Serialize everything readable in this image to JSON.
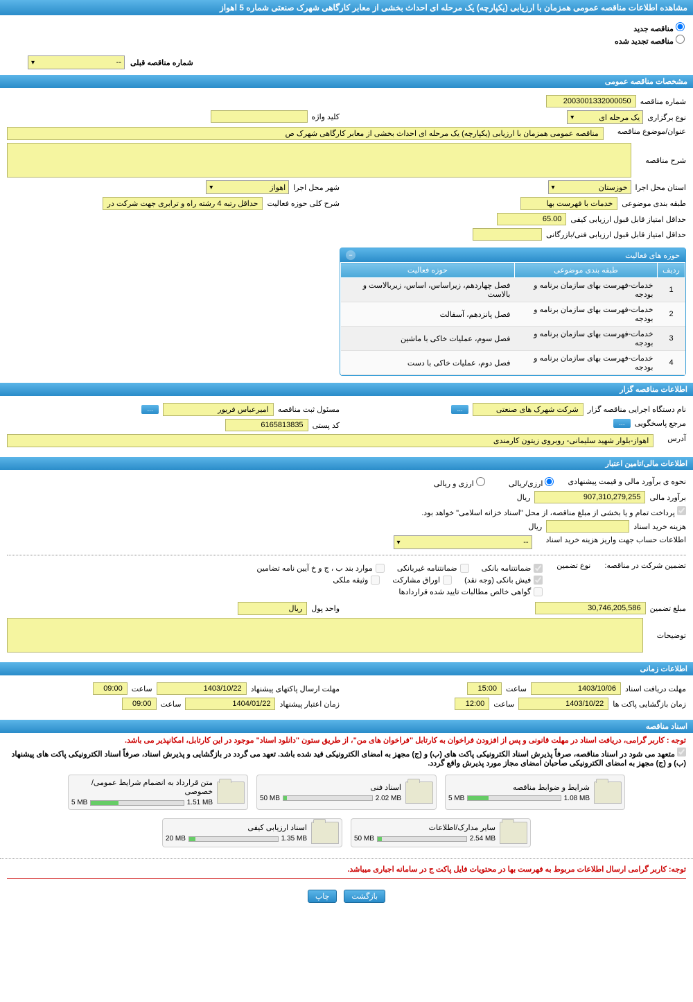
{
  "header": {
    "title": "مشاهده اطلاعات مناقصه عمومی همزمان با ارزیابی (یکپارچه) یک مرحله ای احداث بخشی از معابر کارگاهی شهرک صنعتی شماره 5 اهواز"
  },
  "topRadios": {
    "new_label": "مناقصه جدید",
    "renewed_label": "مناقصه تجدید شده"
  },
  "prevTender": {
    "label": "شماره مناقصه قبلی",
    "value": "--"
  },
  "sections": {
    "general": {
      "title": "مشخصات مناقصه عمومی",
      "tender_no_label": "شماره مناقصه",
      "tender_no": "2003001332000050",
      "type_label": "نوع برگزاری",
      "type_value": "یک مرحله ای",
      "keyword_label": "کلید واژه",
      "keyword_value": "",
      "subject_label": "عنوان/موضوع مناقصه",
      "subject_value": "مناقصه عمومی همزمان با ارزیابی (یکپارچه) یک مرحله ای احداث بخشی از معابر کارگاهی شهرک ص",
      "desc_label": "شرح مناقصه",
      "desc_value": "",
      "province_label": "استان محل اجرا",
      "province_value": "خوزستان",
      "city_label": "شهر محل اجرا",
      "city_value": "اهواز",
      "category_label": "طبقه بندی موضوعی",
      "category_value": "خدمات با فهرست بها",
      "activity_scope_label": "شرح کلی حوزه فعالیت",
      "activity_scope_value": "حداقل رتبه 4 رشته راه و ترابری جهت شرکت در",
      "min_quality_label": "حداقل امتیاز قابل قبول ارزیابی کیفی",
      "min_quality_value": "65.00",
      "min_tech_label": "حداقل امتیاز قابل قبول ارزیابی فنی/بازرگانی",
      "min_tech_value": ""
    },
    "activities": {
      "panel_title": "حوزه های فعالیت",
      "col_row": "ردیف",
      "col_category": "طبقه بندی موضوعی",
      "col_scope": "حوزه فعالیت",
      "rows": [
        {
          "n": "1",
          "cat": "خدمات-فهرست بهای سازمان برنامه و بودجه",
          "scope": "فصل چهاردهم، زیراساس، اساس، زیربالاست  و  بالاست"
        },
        {
          "n": "2",
          "cat": "خدمات-فهرست بهای سازمان برنامه و بودجه",
          "scope": "فصل پانزدهم، آسفالت"
        },
        {
          "n": "3",
          "cat": "خدمات-فهرست بهای سازمان برنامه و بودجه",
          "scope": "فصل سوم، عملیات خاکی با ماشین"
        },
        {
          "n": "4",
          "cat": "خدمات-فهرست بهای سازمان برنامه و بودجه",
          "scope": "فصل دوم، عملیات خاکی با دست"
        }
      ]
    },
    "tenderer": {
      "title": "اطلاعات مناقصه گزار",
      "exec_label": "نام دستگاه اجرایی مناقصه گزار",
      "exec_value": "شرکت شهرک های صنعتی",
      "reg_manager_label": "مسئول ثبت مناقصه",
      "reg_manager_value": "امیرعباس فریور",
      "responder_label": "مرجع پاسخگویی",
      "postal_label": "کد پستی",
      "postal_value": "6165813835",
      "address_label": "آدرس",
      "address_value": "اهواز-بلوار شهید سلیمانی- روبروی زیتون کارمندی",
      "more_btn": "..."
    },
    "financial": {
      "title": "اطلاعات مالی/تامین اعتبار",
      "estimate_mode_label": "نحوه ی برآورد مالی و قیمت پیشنهادی",
      "mode_rial": "ارزی/ریالی",
      "mode_both": "ارزی و ریالی",
      "estimate_label": "برآورد مالی",
      "estimate_value": "907,310,279,255",
      "rial": "ریال",
      "payment_note": "پرداخت تمام و یا بخشی از مبلغ مناقصه، از محل \"اسناد خزانه اسلامی\" خواهد بود.",
      "buy_cost_label": "هزینه خرید اسناد",
      "buy_cost_value": "",
      "deposit_info_label": "اطلاعات حساب جهت واریز هزینه خرید اسناد",
      "deposit_info_value": "--",
      "guarantee_label": "تضمین شرکت در مناقصه:",
      "guarantee_type_label": "نوع تضمین",
      "cb_bank_guarantee": "ضمانتنامه بانکی",
      "cb_nonbank_guarantee": "ضمانتنامه غیربانکی",
      "cb_items_bj": "موارد بند ب ، ج و خ آیین نامه تضامین",
      "cb_cash": "فیش بانکی (وجه نقد)",
      "cb_participation": "اوراق مشارکت",
      "cb_property": "وثیقه ملکی",
      "cb_claims": "گواهی خالص مطالبات تایید شده قراردادها",
      "guarantee_amount_label": "مبلغ تضمین",
      "guarantee_amount_value": "30,746,205,586",
      "currency_unit_label": "واحد پول",
      "currency_unit_value": "ریال",
      "explanation_label": "توضیحات",
      "explanation_value": ""
    },
    "timing": {
      "title": "اطلاعات زمانی",
      "receive_deadline_label": "مهلت دریافت اسناد",
      "receive_date": "1403/10/06",
      "receive_time": "15:00",
      "send_deadline_label": "مهلت ارسال پاکتهای پیشنهاد",
      "send_date": "1403/10/22",
      "send_time": "09:00",
      "opening_label": "زمان بازگشایی پاکت ها",
      "opening_date": "1403/10/22",
      "opening_time": "12:00",
      "validity_label": "زمان اعتبار پیشنهاد",
      "validity_date": "1404/01/22",
      "validity_time": "09:00",
      "time_lbl": "ساعت"
    },
    "docs": {
      "title": "اسناد مناقصه",
      "note1": "توجه : کاربر گرامی، دریافت اسناد در مهلت قانونی و پس از افزودن فراخوان به کارتابل \"فراخوان های من\"، از طریق ستون \"دانلود اسناد\" موجود در این کارتابل، امکانپذیر می باشد.",
      "note2": "متعهد می شود در اسناد مناقصه، صرفاً پذیرش اسناد الکترونیکی پاکت های (ب) و (ج) مجهز به امضای الکترونیکی قید شده باشد. تعهد می گردد در بازگشایی و پذیرش اسناد، صرفاً اسناد الکترونیکی پاکت های پیشنهاد (ب) و (ج) مجهز به امضای الکترونیکی صاحبان امضای مجاز مورد پذیرش واقع گردد.",
      "files": [
        {
          "title": "شرایط و ضوابط مناقصه",
          "used": "1.08 MB",
          "total": "5 MB",
          "pct": 22
        },
        {
          "title": "اسناد فنی",
          "used": "2.02 MB",
          "total": "50 MB",
          "pct": 4
        },
        {
          "title": "متن قرارداد به انضمام شرایط عمومی/خصوصی",
          "used": "1.51 MB",
          "total": "5 MB",
          "pct": 30
        },
        {
          "title": "سایر مدارک/اطلاعات",
          "used": "2.54 MB",
          "total": "50 MB",
          "pct": 5
        },
        {
          "title": "اسناد ارزیابی کیفی",
          "used": "1.35 MB",
          "total": "20 MB",
          "pct": 7
        }
      ],
      "note3": "توجه: کاربر گرامی ارسال اطلاعات مربوط به فهرست بها در محتویات فایل پاکت ج در سامانه اجباری میباشد."
    }
  },
  "footer": {
    "back": "بازگشت",
    "print": "چاپ"
  }
}
